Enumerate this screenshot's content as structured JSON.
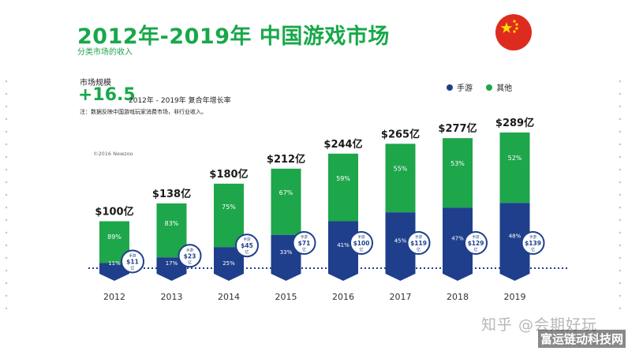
{
  "header": {
    "title": "2012年-2019年 中国游戏市场",
    "subtitle": "分类市场的收入"
  },
  "flag_icon": "china-flag-icon",
  "summary": {
    "market_label": "市场规模",
    "cagr_value": "+16.5",
    "cagr_text": "2012年 - 2019年 复合年增长率",
    "note": "注：数据反映中国游戏玩家消费市场，非行业收入。"
  },
  "legend": [
    {
      "label": "手游",
      "color": "#1f3f8c"
    },
    {
      "label": "其他",
      "color": "#1ea64a"
    }
  ],
  "copyright": "©2016 Newzoo",
  "chart_data": {
    "type": "bar",
    "stacked": true,
    "categories": [
      "2012",
      "2013",
      "2014",
      "2015",
      "2016",
      "2017",
      "2018",
      "2019"
    ],
    "totals": [
      100,
      138,
      180,
      212,
      244,
      265,
      277,
      289
    ],
    "total_labels": [
      "$100亿",
      "$138亿",
      "$180亿",
      "$212亿",
      "$244亿",
      "$265亿",
      "$277亿",
      "$289亿"
    ],
    "series": [
      {
        "name": "手游",
        "color": "#1f3f8c",
        "share_labels": [
          "11%",
          "17%",
          "25%",
          "33%",
          "41%",
          "45%",
          "47%",
          "48%"
        ],
        "values": [
          11,
          23,
          45,
          71,
          100,
          119,
          129,
          139
        ],
        "value_labels": [
          "$11",
          "$23",
          "$45",
          "$71",
          "$100",
          "$119",
          "$129",
          "$139"
        ]
      },
      {
        "name": "其他",
        "color": "#1ea64a",
        "share_labels": [
          "89%",
          "83%",
          "75%",
          "67%",
          "59%",
          "55%",
          "53%",
          "52%"
        ]
      }
    ],
    "callout_prefix": "手游",
    "callout_unit": "亿",
    "ylim": [
      0,
      289
    ]
  },
  "watermark": "知乎 @会期好玩",
  "corner_tag": "富运链动科技网"
}
